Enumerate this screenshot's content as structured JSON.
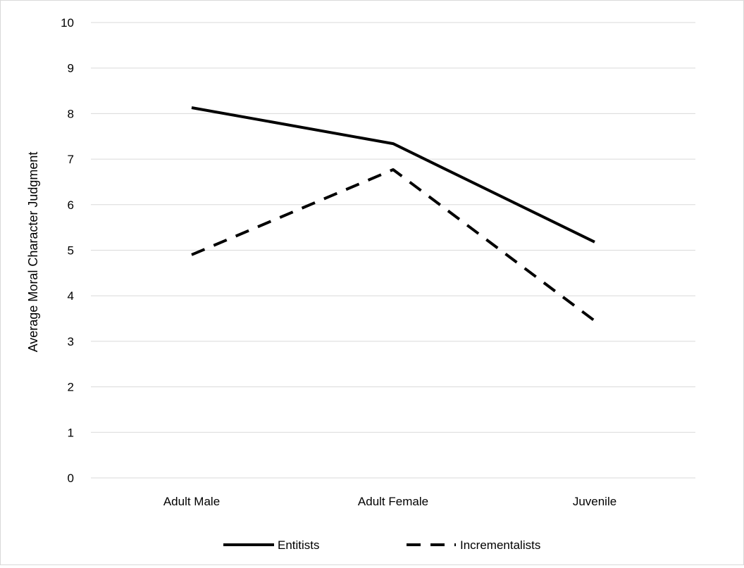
{
  "chart_data": {
    "type": "line",
    "title": "",
    "xlabel": "",
    "ylabel": "Average Moral Character Judgment",
    "categories": [
      "Adult Male",
      "Adult Female",
      "Juvenile"
    ],
    "ylim": [
      0,
      10
    ],
    "yticks": [
      0,
      1,
      2,
      3,
      4,
      5,
      6,
      7,
      8,
      9,
      10
    ],
    "grid": true,
    "legend_position": "bottom",
    "series": [
      {
        "name": "Entitists",
        "values": [
          8.13,
          7.34,
          5.18
        ],
        "style": "solid",
        "color": "#000000"
      },
      {
        "name": "Incrementalists",
        "values": [
          4.9,
          6.77,
          3.45
        ],
        "style": "dashed",
        "color": "#000000"
      }
    ],
    "gridline_color": "#d9d9d9"
  }
}
